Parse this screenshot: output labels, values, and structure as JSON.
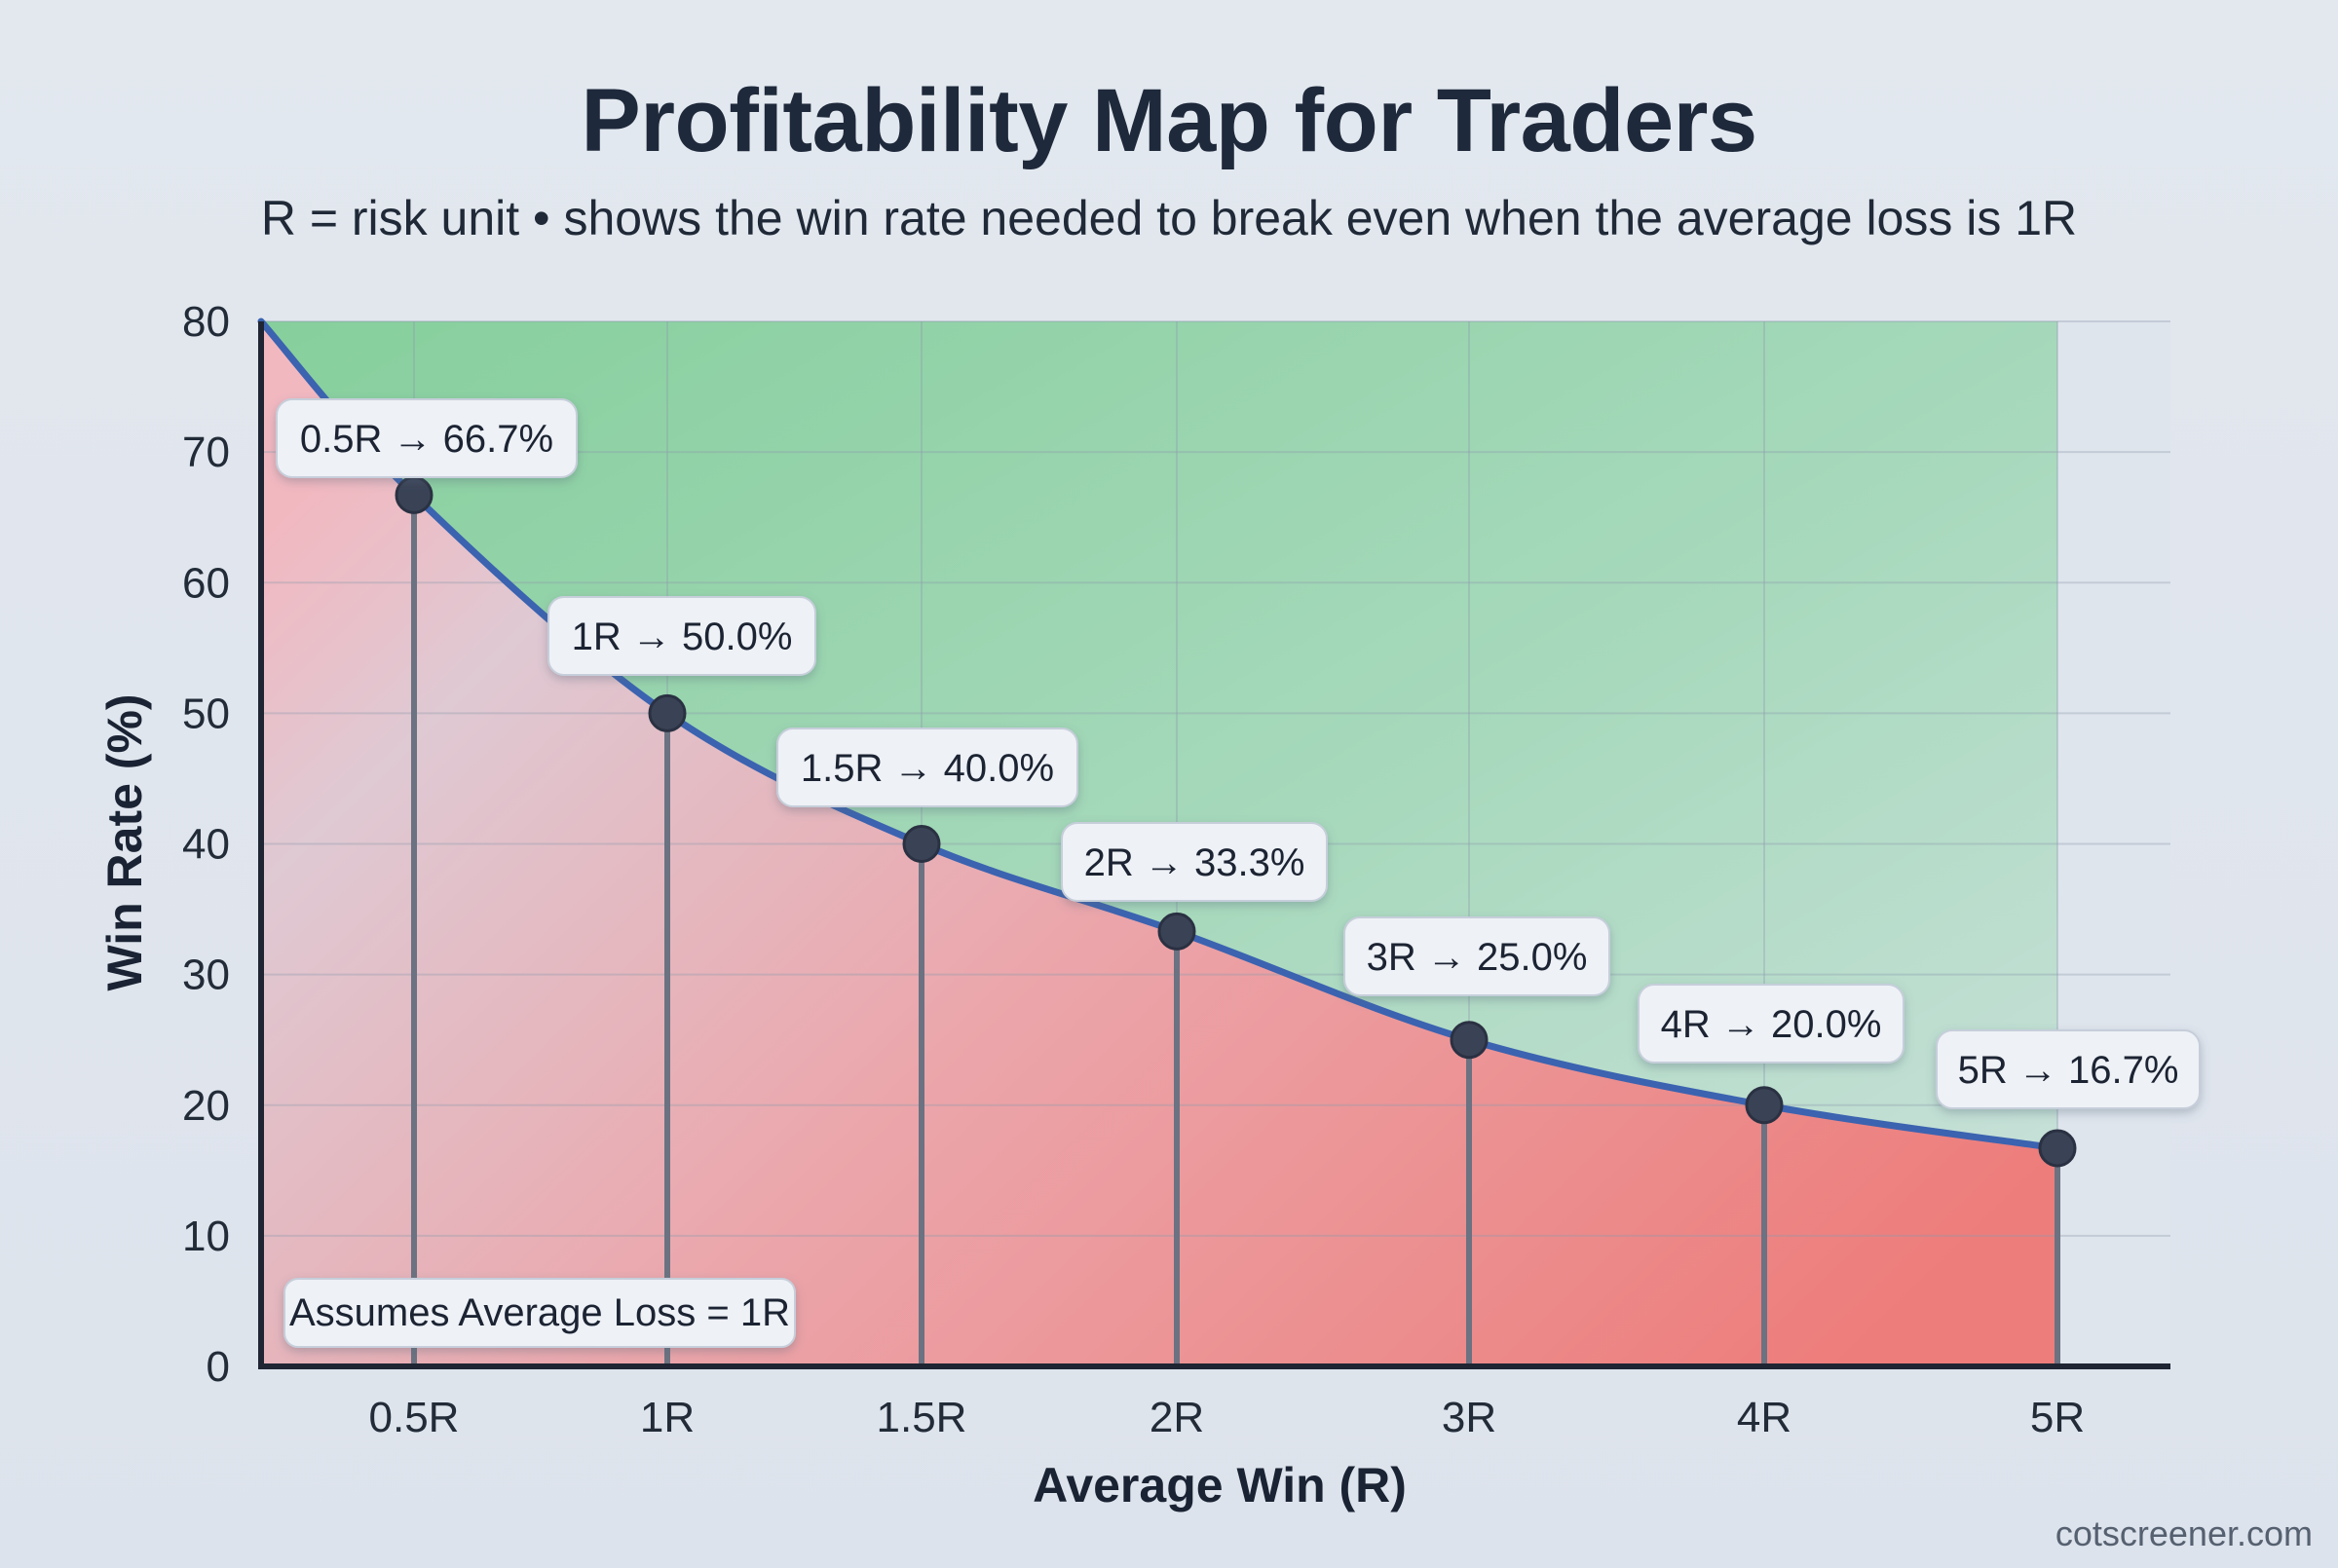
{
  "header": {
    "title": "Profitability Map for Traders",
    "subtitle": "R = risk unit • shows the win rate needed to break even when the average loss is 1R"
  },
  "footer": {
    "watermark": "cotscreener.com"
  },
  "chart_data": {
    "type": "area",
    "title": "Profitability Map for Traders",
    "subtitle": "R = risk unit • shows the win rate needed to break even when the average loss is 1R",
    "xlabel": "Average Win (R)",
    "ylabel": "Win Rate (%)",
    "ylim": [
      0,
      80
    ],
    "y_ticks": [
      0,
      10,
      20,
      30,
      40,
      50,
      60,
      70,
      80
    ],
    "grid": true,
    "categories": [
      "0.5R",
      "1R",
      "1.5R",
      "2R",
      "3R",
      "4R",
      "5R"
    ],
    "x": [
      0.5,
      1,
      1.5,
      2,
      3,
      4,
      5
    ],
    "values": [
      66.7,
      50.0,
      40.0,
      33.3,
      25.0,
      20.0,
      16.7
    ],
    "point_labels": [
      "0.5R → 66.7%",
      "1R → 50.0%",
      "1.5R → 40.0%",
      "2R → 33.3%",
      "3R → 25.0%",
      "4R → 20.0%",
      "5R → 16.7%"
    ],
    "regions": [
      {
        "position": "above curve",
        "color": "#8fd3a6"
      },
      {
        "position": "below curve",
        "color": "#ee8180"
      }
    ],
    "annotation": "Assumes Average Loss = 1R",
    "line_color": "#3b63b0",
    "marker_color": "#3a4356"
  }
}
